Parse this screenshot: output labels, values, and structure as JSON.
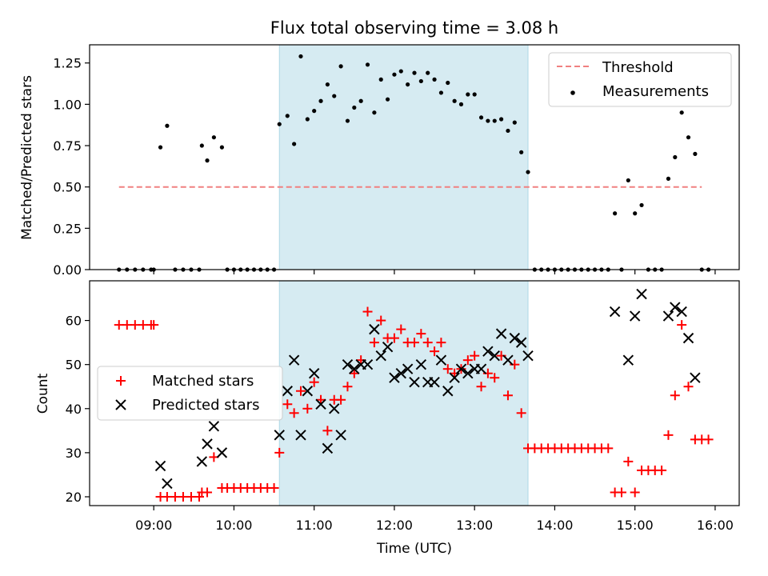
{
  "title": "Flux total observing time = 3.08 h",
  "colors": {
    "threshold": "#f08080",
    "measurement": "#000000",
    "matched": "#ff0000",
    "predicted": "#000000",
    "shade": "#add8e6"
  },
  "chart_data": [
    {
      "type": "scatter",
      "panel": "top",
      "ylabel": "Matched/Predicted stars",
      "xlabel": "",
      "ylim": [
        0,
        1.36
      ],
      "yticks": [
        "0.00",
        "0.25",
        "0.50",
        "0.75",
        "1.00",
        "1.25"
      ],
      "yticks_values": [
        0,
        0.25,
        0.5,
        0.75,
        1.0,
        1.25
      ],
      "legend": {
        "position": "top-right",
        "entries": [
          "Threshold",
          "Measurements"
        ]
      },
      "shaded_region": {
        "from": "10:34",
        "to": "13:40"
      },
      "threshold": {
        "name": "Threshold",
        "value": 0.5,
        "from": "08:34",
        "to": "15:50"
      },
      "series": [
        {
          "name": "Measurements",
          "marker": "dot",
          "points": [
            [
              "08:34",
              0
            ],
            [
              "08:40",
              0
            ],
            [
              "08:46",
              0
            ],
            [
              "08:52",
              0
            ],
            [
              "08:58",
              0
            ],
            [
              "09:00",
              0
            ],
            [
              "09:05",
              0.74
            ],
            [
              "09:10",
              0.87
            ],
            [
              "09:16",
              0
            ],
            [
              "09:22",
              0
            ],
            [
              "09:28",
              0
            ],
            [
              "09:34",
              0
            ],
            [
              "09:36",
              0.75
            ],
            [
              "09:40",
              0.66
            ],
            [
              "09:45",
              0.8
            ],
            [
              "09:51",
              0.74
            ],
            [
              "09:55",
              0
            ],
            [
              "10:00",
              0
            ],
            [
              "10:05",
              0
            ],
            [
              "10:10",
              0
            ],
            [
              "10:15",
              0
            ],
            [
              "10:20",
              0
            ],
            [
              "10:25",
              0
            ],
            [
              "10:30",
              0
            ],
            [
              "10:34",
              0.88
            ],
            [
              "10:40",
              0.93
            ],
            [
              "10:45",
              0.76
            ],
            [
              "10:50",
              1.29
            ],
            [
              "10:55",
              0.91
            ],
            [
              "11:00",
              0.96
            ],
            [
              "11:05",
              1.02
            ],
            [
              "11:10",
              1.12
            ],
            [
              "11:15",
              1.05
            ],
            [
              "11:20",
              1.23
            ],
            [
              "11:25",
              0.9
            ],
            [
              "11:30",
              0.98
            ],
            [
              "11:35",
              1.02
            ],
            [
              "11:40",
              1.24
            ],
            [
              "11:45",
              0.95
            ],
            [
              "11:50",
              1.15
            ],
            [
              "11:55",
              1.03
            ],
            [
              "12:00",
              1.18
            ],
            [
              "12:05",
              1.2
            ],
            [
              "12:10",
              1.12
            ],
            [
              "12:15",
              1.19
            ],
            [
              "12:20",
              1.14
            ],
            [
              "12:25",
              1.19
            ],
            [
              "12:30",
              1.15
            ],
            [
              "12:35",
              1.07
            ],
            [
              "12:40",
              1.13
            ],
            [
              "12:45",
              1.02
            ],
            [
              "12:50",
              1.0
            ],
            [
              "12:55",
              1.06
            ],
            [
              "13:00",
              1.06
            ],
            [
              "13:05",
              0.92
            ],
            [
              "13:10",
              0.9
            ],
            [
              "13:15",
              0.9
            ],
            [
              "13:20",
              0.91
            ],
            [
              "13:25",
              0.84
            ],
            [
              "13:30",
              0.89
            ],
            [
              "13:35",
              0.71
            ],
            [
              "13:40",
              0.59
            ],
            [
              "13:45",
              0
            ],
            [
              "13:50",
              0
            ],
            [
              "13:55",
              0
            ],
            [
              "14:00",
              0
            ],
            [
              "14:05",
              0
            ],
            [
              "14:10",
              0
            ],
            [
              "14:15",
              0
            ],
            [
              "14:20",
              0
            ],
            [
              "14:25",
              0
            ],
            [
              "14:30",
              0
            ],
            [
              "14:35",
              0
            ],
            [
              "14:40",
              0
            ],
            [
              "14:45",
              0.34
            ],
            [
              "14:50",
              0
            ],
            [
              "14:55",
              0.54
            ],
            [
              "15:00",
              0.34
            ],
            [
              "15:05",
              0.39
            ],
            [
              "15:10",
              0
            ],
            [
              "15:15",
              0
            ],
            [
              "15:20",
              0
            ],
            [
              "15:25",
              0.55
            ],
            [
              "15:30",
              0.68
            ],
            [
              "15:35",
              0.95
            ],
            [
              "15:40",
              0.8
            ],
            [
              "15:45",
              0.7
            ],
            [
              "15:50",
              0
            ],
            [
              "15:55",
              0
            ]
          ]
        }
      ]
    },
    {
      "type": "scatter",
      "panel": "bottom",
      "xlabel": "Time (UTC)",
      "ylabel": "Count",
      "ylim": [
        18,
        69
      ],
      "yticks": [
        "20",
        "30",
        "40",
        "50",
        "60"
      ],
      "yticks_values": [
        20,
        30,
        40,
        50,
        60
      ],
      "xlim": [
        "08:12",
        "16:18"
      ],
      "xticks": [
        "09:00",
        "10:00",
        "11:00",
        "12:00",
        "13:00",
        "14:00",
        "15:00",
        "16:00"
      ],
      "legend": {
        "position": "center-left",
        "entries": [
          "Matched stars",
          "Predicted stars"
        ]
      },
      "shaded_region": {
        "from": "10:34",
        "to": "13:40"
      },
      "series": [
        {
          "name": "Matched stars",
          "marker": "plus",
          "points": [
            [
              "08:34",
              59
            ],
            [
              "08:40",
              59
            ],
            [
              "08:46",
              59
            ],
            [
              "08:52",
              59
            ],
            [
              "08:58",
              59
            ],
            [
              "09:00",
              59
            ],
            [
              "09:05",
              20
            ],
            [
              "09:10",
              20
            ],
            [
              "09:16",
              20
            ],
            [
              "09:22",
              20
            ],
            [
              "09:28",
              20
            ],
            [
              "09:34",
              20
            ],
            [
              "09:36",
              21
            ],
            [
              "09:40",
              21
            ],
            [
              "09:45",
              29
            ],
            [
              "09:51",
              22
            ],
            [
              "09:55",
              22
            ],
            [
              "10:00",
              22
            ],
            [
              "10:05",
              22
            ],
            [
              "10:10",
              22
            ],
            [
              "10:15",
              22
            ],
            [
              "10:20",
              22
            ],
            [
              "10:25",
              22
            ],
            [
              "10:30",
              22
            ],
            [
              "10:34",
              30
            ],
            [
              "10:40",
              41
            ],
            [
              "10:45",
              39
            ],
            [
              "10:50",
              44
            ],
            [
              "10:55",
              40
            ],
            [
              "11:00",
              46
            ],
            [
              "11:05",
              42
            ],
            [
              "11:10",
              35
            ],
            [
              "11:15",
              42
            ],
            [
              "11:20",
              42
            ],
            [
              "11:25",
              45
            ],
            [
              "11:30",
              48
            ],
            [
              "11:35",
              51
            ],
            [
              "11:40",
              62
            ],
            [
              "11:45",
              55
            ],
            [
              "11:50",
              60
            ],
            [
              "11:55",
              56
            ],
            [
              "12:00",
              56
            ],
            [
              "12:05",
              58
            ],
            [
              "12:10",
              55
            ],
            [
              "12:15",
              55
            ],
            [
              "12:20",
              57
            ],
            [
              "12:25",
              55
            ],
            [
              "12:30",
              53
            ],
            [
              "12:35",
              55
            ],
            [
              "12:40",
              49
            ],
            [
              "12:45",
              48
            ],
            [
              "12:50",
              49
            ],
            [
              "12:55",
              51
            ],
            [
              "13:00",
              52
            ],
            [
              "13:05",
              45
            ],
            [
              "13:10",
              48
            ],
            [
              "13:15",
              47
            ],
            [
              "13:20",
              52
            ],
            [
              "13:25",
              43
            ],
            [
              "13:30",
              50
            ],
            [
              "13:35",
              39
            ],
            [
              "13:40",
              31
            ],
            [
              "13:45",
              31
            ],
            [
              "13:50",
              31
            ],
            [
              "13:55",
              31
            ],
            [
              "14:00",
              31
            ],
            [
              "14:05",
              31
            ],
            [
              "14:10",
              31
            ],
            [
              "14:15",
              31
            ],
            [
              "14:20",
              31
            ],
            [
              "14:25",
              31
            ],
            [
              "14:30",
              31
            ],
            [
              "14:35",
              31
            ],
            [
              "14:40",
              31
            ],
            [
              "14:45",
              21
            ],
            [
              "14:50",
              21
            ],
            [
              "14:55",
              28
            ],
            [
              "15:00",
              21
            ],
            [
              "15:05",
              26
            ],
            [
              "15:10",
              26
            ],
            [
              "15:15",
              26
            ],
            [
              "15:20",
              26
            ],
            [
              "15:25",
              34
            ],
            [
              "15:30",
              43
            ],
            [
              "15:35",
              59
            ],
            [
              "15:40",
              45
            ],
            [
              "15:45",
              33
            ],
            [
              "15:50",
              33
            ],
            [
              "15:55",
              33
            ]
          ]
        },
        {
          "name": "Predicted stars",
          "marker": "x",
          "points": [
            [
              "09:05",
              27
            ],
            [
              "09:10",
              23
            ],
            [
              "09:36",
              28
            ],
            [
              "09:40",
              32
            ],
            [
              "09:45",
              36
            ],
            [
              "09:51",
              30
            ],
            [
              "10:34",
              34
            ],
            [
              "10:40",
              44
            ],
            [
              "10:45",
              51
            ],
            [
              "10:50",
              34
            ],
            [
              "10:55",
              44
            ],
            [
              "11:00",
              48
            ],
            [
              "11:05",
              41
            ],
            [
              "11:10",
              31
            ],
            [
              "11:15",
              40
            ],
            [
              "11:20",
              34
            ],
            [
              "11:25",
              50
            ],
            [
              "11:30",
              49
            ],
            [
              "11:35",
              50
            ],
            [
              "11:40",
              50
            ],
            [
              "11:45",
              58
            ],
            [
              "11:50",
              52
            ],
            [
              "11:55",
              54
            ],
            [
              "12:00",
              47
            ],
            [
              "12:05",
              48
            ],
            [
              "12:10",
              49
            ],
            [
              "12:15",
              46
            ],
            [
              "12:20",
              50
            ],
            [
              "12:25",
              46
            ],
            [
              "12:30",
              46
            ],
            [
              "12:35",
              51
            ],
            [
              "12:40",
              44
            ],
            [
              "12:45",
              47
            ],
            [
              "12:50",
              49
            ],
            [
              "12:55",
              48
            ],
            [
              "13:00",
              49
            ],
            [
              "13:05",
              49
            ],
            [
              "13:10",
              53
            ],
            [
              "13:15",
              52
            ],
            [
              "13:20",
              57
            ],
            [
              "13:25",
              51
            ],
            [
              "13:30",
              56
            ],
            [
              "13:35",
              55
            ],
            [
              "13:40",
              52
            ],
            [
              "14:45",
              62
            ],
            [
              "14:55",
              51
            ],
            [
              "15:00",
              61
            ],
            [
              "15:05",
              66
            ],
            [
              "15:25",
              61
            ],
            [
              "15:30",
              63
            ],
            [
              "15:35",
              62
            ],
            [
              "15:40",
              56
            ],
            [
              "15:45",
              47
            ]
          ]
        }
      ]
    }
  ]
}
